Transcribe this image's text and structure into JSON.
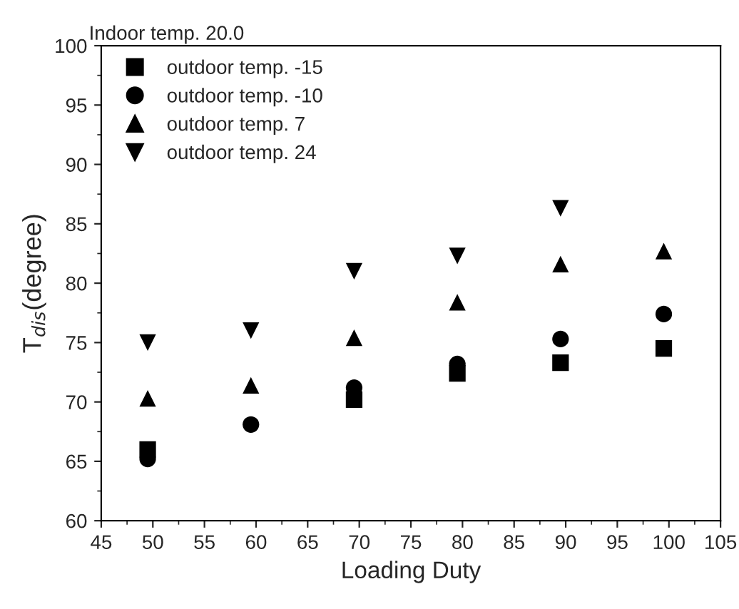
{
  "chart_data": {
    "type": "scatter",
    "title": "Indoor temp. 20.0",
    "xlabel": "Loading Duty",
    "ylabel": "T$_{dis}$(degree)",
    "series": [
      {
        "name": "outdoor temp. -15",
        "color": "#000000",
        "marker": "square",
        "x": [
          49.5,
          69.5,
          79.5,
          89.5,
          99.5
        ],
        "values": [
          66,
          70.2,
          72.4,
          73.3,
          74.5
        ]
      },
      {
        "name": "outdoor temp. -10",
        "color": "#000000",
        "marker": "circle",
        "x": [
          49.5,
          59.5,
          69.5,
          79.5,
          89.5,
          99.5
        ],
        "values": [
          65.2,
          68.1,
          71.2,
          73.2,
          75.3,
          77.4
        ]
      },
      {
        "name": "outdoor temp. 7",
        "color": "#000000",
        "marker": "triangle",
        "x": [
          49.5,
          59.5,
          69.5,
          79.5,
          89.5,
          99.5
        ],
        "values": [
          70.3,
          71.4,
          75.4,
          78.4,
          81.6,
          82.7
        ]
      },
      {
        "name": "outdoor temp. 24",
        "color": "#000000",
        "marker": "triangle_down",
        "x": [
          49.5,
          59.5,
          69.5,
          79.5,
          89.5
        ],
        "values": [
          75,
          76,
          81,
          82.3,
          86.3
        ]
      }
    ],
    "xlim": [
      45,
      105
    ],
    "xticks": [
      45,
      50,
      55,
      60,
      65,
      70,
      75,
      80,
      85,
      90,
      95,
      100,
      105
    ],
    "ylim": [
      60,
      100
    ],
    "yticks": [
      60,
      65,
      70,
      75,
      80,
      85,
      90,
      95,
      100
    ],
    "grid": false,
    "legend": "top left"
  }
}
